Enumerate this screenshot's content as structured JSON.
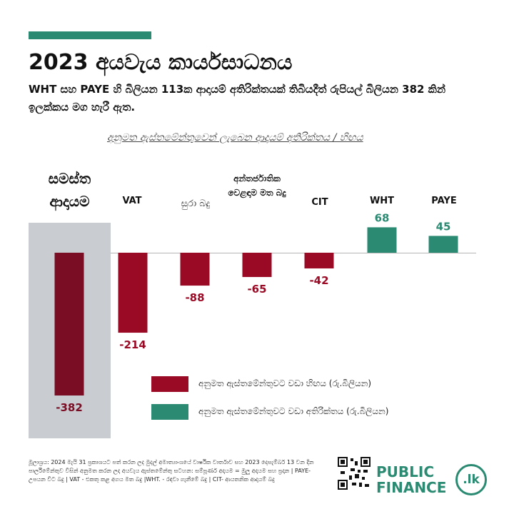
{
  "header": {
    "title": "2023 අයවැය කාර්යසාධනය",
    "subtitle": "WHT සහ PAYE හි බිලියන 113ක ආදායම් අතිරික්තයක් තිබියදීත් රුපියල් බිලියන 382 කින් ඉලක්කය මග හැරී ඇත."
  },
  "total_label": [
    "සමස්ත",
    "ආදායම"
  ],
  "chart_data": {
    "type": "bar",
    "title": "අනුමත ඇස්තමේන්තුවෙන් ලැබෙන ආදායම් අතිරික්තය / හිඟය",
    "categories": [
      "සමස්ත ආදායම",
      "VAT",
      "සුරා බදු",
      "අන්තර්ජාතික වෙළඳාම මත බදු",
      "CIT",
      "WHT",
      "PAYE"
    ],
    "values": [
      -382,
      -214,
      -88,
      -65,
      -42,
      68,
      45
    ],
    "value_labels": [
      "-382",
      "-214",
      "-88",
      "-65",
      "-42",
      "68",
      "45"
    ],
    "ylim": [
      -382,
      68
    ],
    "colors": {
      "deficit": "#9b0a25",
      "total": "#7a0c23",
      "surplus": "#2b8a72"
    },
    "legend": [
      {
        "label": "අනුමත ඇස්තමේන්තුවට වඩා හිඟය (රු.බිලියන)",
        "color": "#9b0a25"
      },
      {
        "label": "අනුමත ඇස්තමේන්තුවට වඩා අතිරික්තය (රු.බිලියන)",
        "color": "#2b8a72"
      }
    ]
  },
  "footer": {
    "note": "මූලාශ්‍රය: 2024 මැයි 31 ප්‍රකාශයට පත් කරන ලද මුදල් අමාත්‍යාංශයේ වාර්ෂික වාර්තාව සහ 2023 දෙසැම්බර් 13 වන දින පාර්ලිමේන්තුව විසින් අනුමත කරන ලද අයවැය ඇස්තමේන්තු සටහන: සම්පූර්ණ අදායම = මුලූ අදායම සහ ප්‍රදාන | PAYE- උපයන විට බදු | VAT - එකතු කළ අගය මත බදු |WHT. - රඳවා ගැනීමේ බදු | CIT- ආයතනික ආදායම් බදු",
    "brand_line1": "PUBLIC",
    "brand_line2": "FINANCE",
    "brand_badge": ".lk"
  }
}
